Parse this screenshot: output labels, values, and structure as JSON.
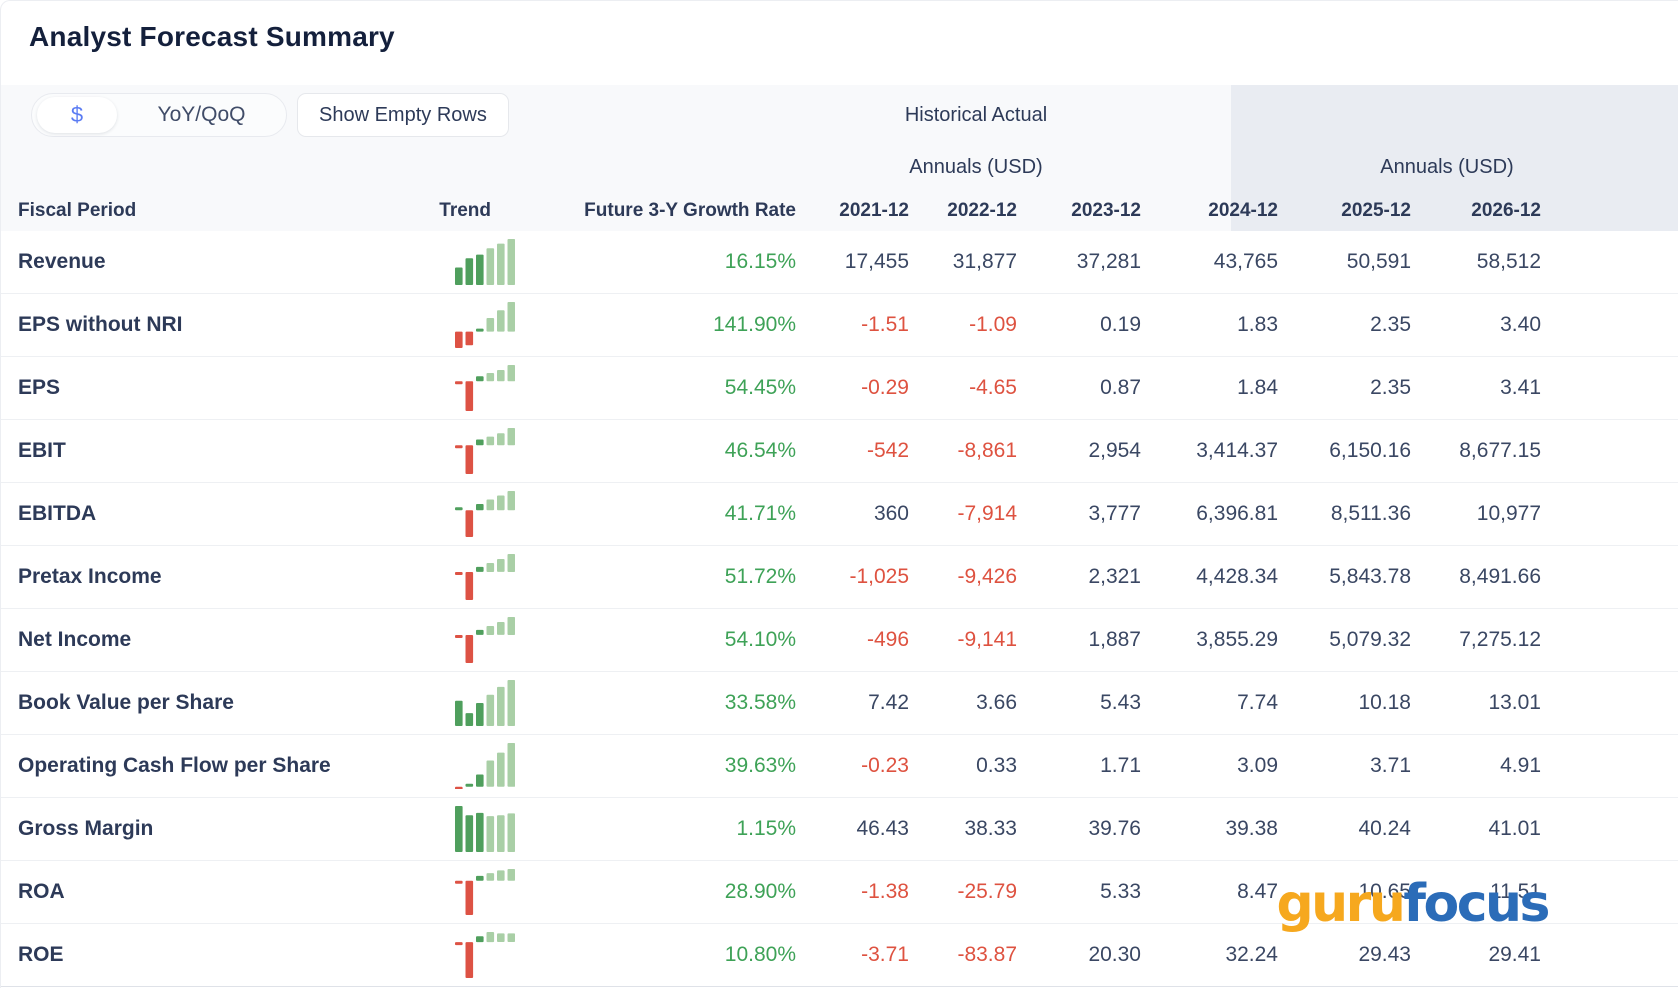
{
  "title": "Analyst Forecast Summary",
  "controls": {
    "currency_toggle_label": "$",
    "yoy_qoq_label": "YoY/QoQ",
    "show_empty_rows_label": "Show Empty Rows"
  },
  "header": {
    "historical_group_label": "Historical Actual",
    "annuals_left_label": "Annuals (USD)",
    "annuals_right_label": "Annuals (USD)",
    "fiscal_period_label": "Fiscal Period",
    "trend_label": "Trend",
    "growth_label": "Future 3-Y Growth Rate",
    "periods_historical": [
      "2021-12",
      "2022-12",
      "2023-12"
    ],
    "periods_forecast": [
      "2024-12",
      "2025-12",
      "2026-12"
    ]
  },
  "colors": {
    "accent_blue": "#5b7cf3",
    "growth_green": "#3ea257",
    "negative_red": "#de5240",
    "bar_dark_green": "#4f9f5d",
    "bar_light_green": "#a9cfa6",
    "bar_red": "#dd5244",
    "header_band_bg": "#f8f9fb",
    "forecast_band_bg": "#e9ecf2",
    "logo_orange": "#f6a81e",
    "logo_blue": "#2b6cb8"
  },
  "logo": {
    "part1": "guru",
    "part2": "focus"
  },
  "rows": [
    {
      "label": "Revenue",
      "growth": "16.15%",
      "values": [
        "17,455",
        "31,877",
        "37,281",
        "43,765",
        "50,591",
        "58,512"
      ],
      "trend": [
        0.38,
        0.58,
        0.66,
        0.8,
        0.9,
        1.0
      ]
    },
    {
      "label": "EPS without NRI",
      "growth": "141.90%",
      "values": [
        "-1.51",
        "-1.09",
        "0.19",
        "1.83",
        "2.35",
        "3.40"
      ],
      "trend": [
        -0.4,
        -0.33,
        0.05,
        0.33,
        0.52,
        0.72
      ]
    },
    {
      "label": "EPS",
      "growth": "54.45%",
      "values": [
        "-0.29",
        "-4.65",
        "0.87",
        "1.84",
        "2.35",
        "3.41"
      ],
      "trend": [
        -0.07,
        -1.0,
        0.17,
        0.28,
        0.38,
        0.55
      ]
    },
    {
      "label": "EBIT",
      "growth": "46.54%",
      "values": [
        "-542",
        "-8,861",
        "2,954",
        "3,414.37",
        "6,150.16",
        "8,677.15"
      ],
      "trend": [
        -0.07,
        -1.0,
        0.2,
        0.3,
        0.42,
        0.6
      ]
    },
    {
      "label": "EBITDA",
      "growth": "41.71%",
      "values": [
        "360",
        "-7,914",
        "3,777",
        "6,396.81",
        "8,511.36",
        "10,977"
      ],
      "trend": [
        0.05,
        -0.95,
        0.22,
        0.38,
        0.52,
        0.68
      ]
    },
    {
      "label": "Pretax Income",
      "growth": "51.72%",
      "values": [
        "-1,025",
        "-9,426",
        "2,321",
        "4,428.34",
        "5,843.78",
        "8,491.66"
      ],
      "trend": [
        -0.08,
        -1.0,
        0.18,
        0.32,
        0.46,
        0.64
      ]
    },
    {
      "label": "Net Income",
      "growth": "54.10%",
      "values": [
        "-496",
        "-9,141",
        "1,887",
        "3,855.29",
        "5,079.32",
        "7,275.12"
      ],
      "trend": [
        -0.08,
        -1.0,
        0.18,
        0.32,
        0.46,
        0.64
      ]
    },
    {
      "label": "Book Value per Share",
      "growth": "33.58%",
      "values": [
        "7.42",
        "3.66",
        "5.43",
        "7.74",
        "10.18",
        "13.01"
      ],
      "trend": [
        0.55,
        0.28,
        0.5,
        0.68,
        0.85,
        1.0
      ]
    },
    {
      "label": "Operating Cash Flow per Share",
      "growth": "39.63%",
      "values": [
        "-0.23",
        "0.33",
        "1.71",
        "3.09",
        "3.71",
        "4.91"
      ],
      "trend": [
        -0.05,
        0.05,
        0.28,
        0.6,
        0.78,
        1.0
      ]
    },
    {
      "label": "Gross Margin",
      "growth": "1.15%",
      "values": [
        "46.43",
        "38.33",
        "39.76",
        "39.38",
        "40.24",
        "41.01"
      ],
      "trend": [
        1.0,
        0.8,
        0.85,
        0.78,
        0.8,
        0.84
      ]
    },
    {
      "label": "ROA",
      "growth": "28.90%",
      "values": [
        "-1.38",
        "-25.79",
        "5.33",
        "8.47",
        "10.65",
        "11.51"
      ],
      "trend": [
        -0.07,
        -1.0,
        0.14,
        0.22,
        0.3,
        0.34
      ]
    },
    {
      "label": "ROE",
      "growth": "10.80%",
      "values": [
        "-3.71",
        "-83.87",
        "20.30",
        "32.24",
        "29.43",
        "29.41"
      ],
      "trend": [
        -0.07,
        -1.0,
        0.16,
        0.28,
        0.24,
        0.24
      ]
    }
  ]
}
